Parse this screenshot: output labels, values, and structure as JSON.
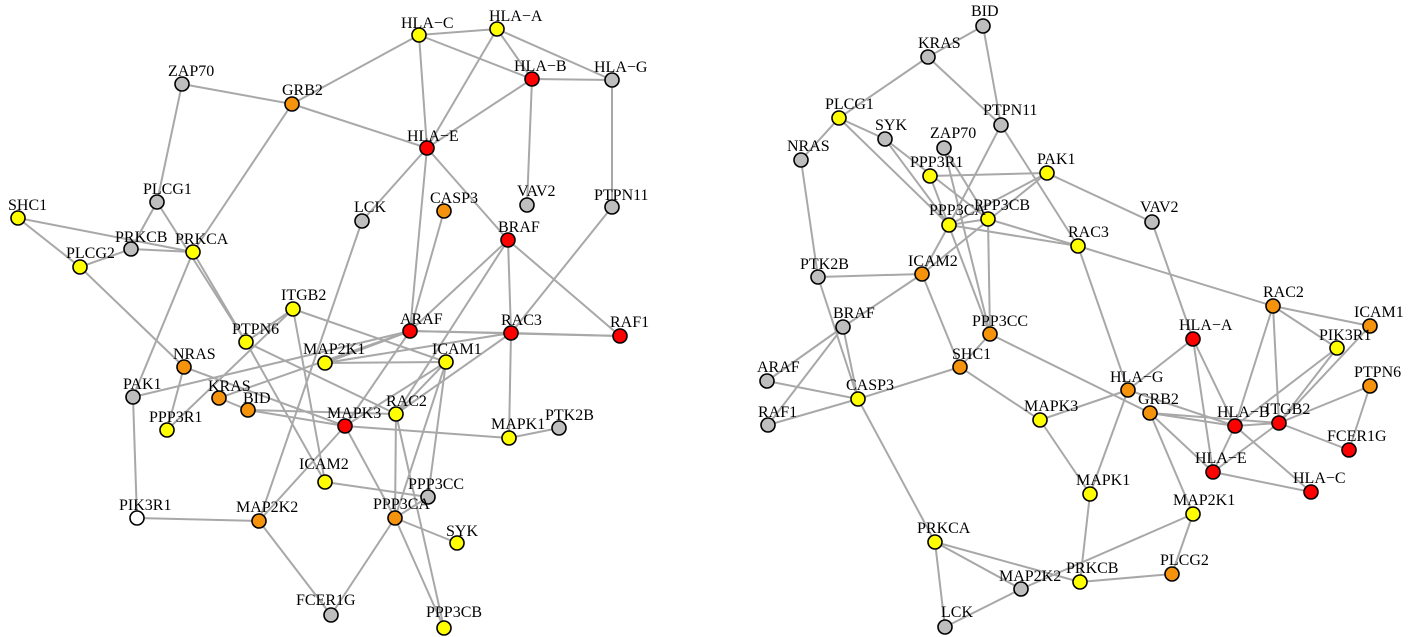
{
  "colors": {
    "red": "#ff0000",
    "orange": "#f5940c",
    "yellow": "#ffff00",
    "gray": "#bebebe",
    "white": "#ffffff",
    "edge": "#a8a8a8"
  },
  "networks": [
    {
      "nodes": [
        {
          "id": "HLA-C",
          "label": "HLA−C",
          "color": "yellow"
        },
        {
          "id": "HLA-A",
          "label": "HLA−A",
          "color": "yellow"
        },
        {
          "id": "HLA-B",
          "label": "HLA−B",
          "color": "red"
        },
        {
          "id": "HLA-G",
          "label": "HLA−G",
          "color": "gray"
        },
        {
          "id": "ZAP70",
          "label": "ZAP70",
          "color": "gray"
        },
        {
          "id": "GRB2",
          "label": "GRB2",
          "color": "orange"
        },
        {
          "id": "HLA-E",
          "label": "HLA−E",
          "color": "red"
        },
        {
          "id": "PLCG1",
          "label": "PLCG1",
          "color": "gray"
        },
        {
          "id": "CASP3",
          "label": "CASP3",
          "color": "orange"
        },
        {
          "id": "VAV2",
          "label": "VAV2",
          "color": "gray"
        },
        {
          "id": "PTPN11",
          "label": "PTPN11",
          "color": "gray"
        },
        {
          "id": "SHC1",
          "label": "SHC1",
          "color": "yellow"
        },
        {
          "id": "LCK",
          "label": "LCK",
          "color": "gray"
        },
        {
          "id": "BRAF",
          "label": "BRAF",
          "color": "red"
        },
        {
          "id": "PRKCB",
          "label": "PRKCB",
          "color": "gray"
        },
        {
          "id": "PRKCA",
          "label": "PRKCA",
          "color": "yellow"
        },
        {
          "id": "PLCG2",
          "label": "PLCG2",
          "color": "yellow"
        },
        {
          "id": "ITGB2",
          "label": "ITGB2",
          "color": "yellow"
        },
        {
          "id": "ARAF",
          "label": "ARAF",
          "color": "red"
        },
        {
          "id": "RAC3",
          "label": "RAC3",
          "color": "red"
        },
        {
          "id": "RAF1",
          "label": "RAF1",
          "color": "red"
        },
        {
          "id": "PTPN6",
          "label": "PTPN6",
          "color": "yellow"
        },
        {
          "id": "NRAS",
          "label": "NRAS",
          "color": "orange"
        },
        {
          "id": "MAP2K1",
          "label": "MAP2K1",
          "color": "yellow"
        },
        {
          "id": "ICAM1",
          "label": "ICAM1",
          "color": "yellow"
        },
        {
          "id": "PAK1",
          "label": "PAK1",
          "color": "gray"
        },
        {
          "id": "KRAS",
          "label": "KRAS",
          "color": "orange"
        },
        {
          "id": "BID",
          "label": "BID",
          "color": "orange"
        },
        {
          "id": "PPP3R1",
          "label": "PPP3R1",
          "color": "yellow"
        },
        {
          "id": "MAPK3",
          "label": "MAPK3",
          "color": "red"
        },
        {
          "id": "RAC2",
          "label": "RAC2",
          "color": "yellow"
        },
        {
          "id": "MAPK1",
          "label": "MAPK1",
          "color": "yellow"
        },
        {
          "id": "PTK2B",
          "label": "PTK2B",
          "color": "gray"
        },
        {
          "id": "ICAM2",
          "label": "ICAM2",
          "color": "yellow"
        },
        {
          "id": "PPP3CC",
          "label": "PPP3CC",
          "color": "gray"
        },
        {
          "id": "PIK3R1",
          "label": "PIK3R1",
          "color": "white"
        },
        {
          "id": "MAP2K2",
          "label": "MAP2K2",
          "color": "orange"
        },
        {
          "id": "PPP3CA",
          "label": "PPP3CA",
          "color": "orange"
        },
        {
          "id": "SYK",
          "label": "SYK",
          "color": "yellow"
        },
        {
          "id": "FCER1G",
          "label": "FCER1G",
          "color": "gray"
        },
        {
          "id": "PPP3CB",
          "label": "PPP3CB",
          "color": "yellow"
        }
      ],
      "edges": [
        [
          "HLA-C",
          "HLA-A"
        ],
        [
          "HLA-C",
          "HLA-B"
        ],
        [
          "HLA-C",
          "HLA-E"
        ],
        [
          "HLA-C",
          "GRB2"
        ],
        [
          "HLA-A",
          "HLA-B"
        ],
        [
          "HLA-A",
          "HLA-G"
        ],
        [
          "HLA-A",
          "HLA-E"
        ],
        [
          "HLA-B",
          "HLA-G"
        ],
        [
          "HLA-B",
          "HLA-E"
        ],
        [
          "HLA-B",
          "VAV2"
        ],
        [
          "HLA-G",
          "PTPN11"
        ],
        [
          "ZAP70",
          "GRB2"
        ],
        [
          "ZAP70",
          "PLCG1"
        ],
        [
          "GRB2",
          "HLA-E"
        ],
        [
          "GRB2",
          "PRKCA"
        ],
        [
          "HLA-E",
          "LCK"
        ],
        [
          "HLA-E",
          "ARAF"
        ],
        [
          "HLA-E",
          "BRAF"
        ],
        [
          "PLCG1",
          "PRKCB"
        ],
        [
          "PLCG1",
          "PTPN6"
        ],
        [
          "CASP3",
          "ARAF"
        ],
        [
          "BRAF",
          "ARAF"
        ],
        [
          "BRAF",
          "RAC3"
        ],
        [
          "BRAF",
          "RAF1"
        ],
        [
          "BRAF",
          "RAC2"
        ],
        [
          "PTPN11",
          "RAC3"
        ],
        [
          "SHC1",
          "PLCG2"
        ],
        [
          "SHC1",
          "PRKCA"
        ],
        [
          "LCK",
          "MAP2K2"
        ],
        [
          "PRKCB",
          "PRKCA"
        ],
        [
          "PRKCB",
          "PLCG2"
        ],
        [
          "PLCG2",
          "NRAS"
        ],
        [
          "PRKCA",
          "PTPN6"
        ],
        [
          "PRKCA",
          "PAK1"
        ],
        [
          "ITGB2",
          "PTPN6"
        ],
        [
          "ITGB2",
          "PPP3R1"
        ],
        [
          "ITGB2",
          "ICAM1"
        ],
        [
          "ITGB2",
          "ICAM2"
        ],
        [
          "ARAF",
          "RAC3"
        ],
        [
          "ARAF",
          "RAF1"
        ],
        [
          "ARAF",
          "MAP2K1"
        ],
        [
          "ARAF",
          "KRAS"
        ],
        [
          "ARAF",
          "MAPK3"
        ],
        [
          "RAC3",
          "RAF1"
        ],
        [
          "RAC3",
          "MAPK1"
        ],
        [
          "RAC3",
          "RAC2"
        ],
        [
          "PTPN6",
          "ICAM2"
        ],
        [
          "PTPN6",
          "RAC2"
        ],
        [
          "NRAS",
          "MAPK3"
        ],
        [
          "NRAS",
          "PPP3R1"
        ],
        [
          "MAP2K1",
          "ICAM1"
        ],
        [
          "MAP2K1",
          "RAC3"
        ],
        [
          "MAP2K1",
          "ARAF"
        ],
        [
          "ICAM1",
          "MAPK3"
        ],
        [
          "ICAM1",
          "PPP3CC"
        ],
        [
          "ICAM1",
          "PPP3CA"
        ],
        [
          "PAK1",
          "PIK3R1"
        ],
        [
          "PAK1",
          "ARAF"
        ],
        [
          "KRAS",
          "BID"
        ],
        [
          "BID",
          "MAPK3"
        ],
        [
          "BID",
          "RAC2"
        ],
        [
          "MAPK3",
          "MAP2K2"
        ],
        [
          "MAPK3",
          "PPP3CA"
        ],
        [
          "MAPK3",
          "MAPK1"
        ],
        [
          "RAC2",
          "PPP3CA"
        ],
        [
          "RAC2",
          "PPP3CB"
        ],
        [
          "RAC2",
          "ICAM1"
        ],
        [
          "MAPK1",
          "PTK2B"
        ],
        [
          "ICAM2",
          "PPP3CC"
        ],
        [
          "PPP3CC",
          "PPP3CA"
        ],
        [
          "PIK3R1",
          "MAP2K2"
        ],
        [
          "MAP2K2",
          "FCER1G"
        ],
        [
          "PPP3CA",
          "SYK"
        ],
        [
          "PPP3CA",
          "FCER1G"
        ],
        [
          "PPP3CA",
          "PPP3CB"
        ]
      ]
    },
    {
      "nodes": [
        {
          "id": "BID",
          "label": "BID",
          "color": "gray"
        },
        {
          "id": "KRAS",
          "label": "KRAS",
          "color": "gray"
        },
        {
          "id": "PLCG1",
          "label": "PLCG1",
          "color": "yellow"
        },
        {
          "id": "PTPN11",
          "label": "PTPN11",
          "color": "gray"
        },
        {
          "id": "SYK",
          "label": "SYK",
          "color": "gray"
        },
        {
          "id": "ZAP70",
          "label": "ZAP70",
          "color": "gray"
        },
        {
          "id": "NRAS",
          "label": "NRAS",
          "color": "gray"
        },
        {
          "id": "PPP3R1",
          "label": "PPP3R1",
          "color": "yellow"
        },
        {
          "id": "PAK1",
          "label": "PAK1",
          "color": "yellow"
        },
        {
          "id": "PPP3CA",
          "label": "PPP3CA",
          "color": "yellow"
        },
        {
          "id": "PPP3CB",
          "label": "PPP3CB",
          "color": "yellow"
        },
        {
          "id": "VAV2",
          "label": "VAV2",
          "color": "gray"
        },
        {
          "id": "RAC3",
          "label": "RAC3",
          "color": "yellow"
        },
        {
          "id": "PTK2B",
          "label": "PTK2B",
          "color": "gray"
        },
        {
          "id": "ICAM2",
          "label": "ICAM2",
          "color": "orange"
        },
        {
          "id": "BRAF",
          "label": "BRAF",
          "color": "gray"
        },
        {
          "id": "PPP3CC",
          "label": "PPP3CC",
          "color": "orange"
        },
        {
          "id": "RAC2",
          "label": "RAC2",
          "color": "orange"
        },
        {
          "id": "ICAM1",
          "label": "ICAM1",
          "color": "orange"
        },
        {
          "id": "PIK3R1",
          "label": "PIK3R1",
          "color": "yellow"
        },
        {
          "id": "HLA-A",
          "label": "HLA−A",
          "color": "red"
        },
        {
          "id": "SHC1",
          "label": "SHC1",
          "color": "orange"
        },
        {
          "id": "ARAF",
          "label": "ARAF",
          "color": "gray"
        },
        {
          "id": "CASP3",
          "label": "CASP3",
          "color": "yellow"
        },
        {
          "id": "HLA-G",
          "label": "HLA−G",
          "color": "orange"
        },
        {
          "id": "PTPN6",
          "label": "PTPN6",
          "color": "orange"
        },
        {
          "id": "RAF1",
          "label": "RAF1",
          "color": "gray"
        },
        {
          "id": "MAPK3",
          "label": "MAPK3",
          "color": "yellow"
        },
        {
          "id": "GRB2",
          "label": "GRB2",
          "color": "orange"
        },
        {
          "id": "HLA-B",
          "label": "HLA−B",
          "color": "red"
        },
        {
          "id": "ITGB2",
          "label": "ITGB2",
          "color": "red"
        },
        {
          "id": "FCER1G",
          "label": "FCER1G",
          "color": "red"
        },
        {
          "id": "HLA-E",
          "label": "HLA−E",
          "color": "red"
        },
        {
          "id": "MAPK1",
          "label": "MAPK1",
          "color": "yellow"
        },
        {
          "id": "HLA-C",
          "label": "HLA−C",
          "color": "red"
        },
        {
          "id": "MAP2K1",
          "label": "MAP2K1",
          "color": "yellow"
        },
        {
          "id": "PRKCA",
          "label": "PRKCA",
          "color": "yellow"
        },
        {
          "id": "PLCG2",
          "label": "PLCG2",
          "color": "orange"
        },
        {
          "id": "MAP2K2",
          "label": "MAP2K2",
          "color": "gray"
        },
        {
          "id": "PRKCB",
          "label": "PRKCB",
          "color": "yellow"
        },
        {
          "id": "LCK",
          "label": "LCK",
          "color": "gray"
        }
      ],
      "edges": [
        [
          "BID",
          "KRAS"
        ],
        [
          "BID",
          "PTPN11"
        ],
        [
          "KRAS",
          "PLCG1"
        ],
        [
          "KRAS",
          "PTPN11"
        ],
        [
          "PLCG1",
          "NRAS"
        ],
        [
          "PLCG1",
          "SYK"
        ],
        [
          "PLCG1",
          "PPP3CA"
        ],
        [
          "PTPN11",
          "PPP3CA"
        ],
        [
          "PTPN11",
          "RAC3"
        ],
        [
          "SYK",
          "PPP3CB"
        ],
        [
          "SYK",
          "PPP3CA"
        ],
        [
          "ZAP70",
          "PPP3CC"
        ],
        [
          "ZAP70",
          "PPP3CB"
        ],
        [
          "NRAS",
          "PTK2B"
        ],
        [
          "PPP3R1",
          "PAK1"
        ],
        [
          "PPP3R1",
          "PPP3CC"
        ],
        [
          "PAK1",
          "ICAM2"
        ],
        [
          "PAK1",
          "VAV2"
        ],
        [
          "PAK1",
          "PPP3CA"
        ],
        [
          "PPP3CA",
          "PPP3CB"
        ],
        [
          "PPP3CA",
          "RAC3"
        ],
        [
          "PPP3CA",
          "ICAM2"
        ],
        [
          "PPP3CB",
          "PPP3CC"
        ],
        [
          "PPP3CB",
          "RAC3"
        ],
        [
          "VAV2",
          "HLA-A"
        ],
        [
          "RAC3",
          "RAC2"
        ],
        [
          "RAC3",
          "HLA-G"
        ],
        [
          "PTK2B",
          "ICAM2"
        ],
        [
          "PTK2B",
          "CASP3"
        ],
        [
          "ICAM2",
          "BRAF"
        ],
        [
          "ICAM2",
          "SHC1"
        ],
        [
          "BRAF",
          "ARAF"
        ],
        [
          "BRAF",
          "RAF1"
        ],
        [
          "BRAF",
          "CASP3"
        ],
        [
          "PPP3CC",
          "SHC1"
        ],
        [
          "PPP3CC",
          "GRB2"
        ],
        [
          "RAC2",
          "ICAM1"
        ],
        [
          "RAC2",
          "PIK3R1"
        ],
        [
          "RAC2",
          "HLA-B"
        ],
        [
          "RAC2",
          "ITGB2"
        ],
        [
          "ICAM1",
          "ITGB2"
        ],
        [
          "PIK3R1",
          "HLA-B"
        ],
        [
          "PIK3R1",
          "ITGB2"
        ],
        [
          "PTPN6",
          "ITGB2"
        ],
        [
          "PTPN6",
          "FCER1G"
        ],
        [
          "HLA-A",
          "HLA-G"
        ],
        [
          "HLA-A",
          "HLA-B"
        ],
        [
          "HLA-A",
          "HLA-E"
        ],
        [
          "SHC1",
          "MAPK3"
        ],
        [
          "SHC1",
          "CASP3"
        ],
        [
          "ARAF",
          "CASP3"
        ],
        [
          "RAF1",
          "CASP3"
        ],
        [
          "CASP3",
          "PRKCA"
        ],
        [
          "HLA-G",
          "MAPK3"
        ],
        [
          "HLA-G",
          "HLA-B"
        ],
        [
          "HLA-G",
          "MAPK1"
        ],
        [
          "GRB2",
          "HLA-B"
        ],
        [
          "GRB2",
          "MAP2K1"
        ],
        [
          "GRB2",
          "HLA-E"
        ],
        [
          "GRB2",
          "ITGB2"
        ],
        [
          "HLA-B",
          "ITGB2"
        ],
        [
          "HLA-B",
          "HLA-E"
        ],
        [
          "HLA-B",
          "HLA-C"
        ],
        [
          "ITGB2",
          "FCER1G"
        ],
        [
          "ITGB2",
          "HLA-E"
        ],
        [
          "HLA-E",
          "HLA-C"
        ],
        [
          "MAPK3",
          "MAPK1"
        ],
        [
          "MAPK1",
          "PRKCB"
        ],
        [
          "MAP2K1",
          "PLCG2"
        ],
        [
          "MAP2K1",
          "MAP2K2"
        ],
        [
          "PRKCA",
          "MAP2K2"
        ],
        [
          "PRKCA",
          "PRKCB"
        ],
        [
          "PRKCA",
          "LCK"
        ],
        [
          "PLCG2",
          "PRKCB"
        ],
        [
          "MAP2K2",
          "LCK"
        ]
      ]
    }
  ]
}
